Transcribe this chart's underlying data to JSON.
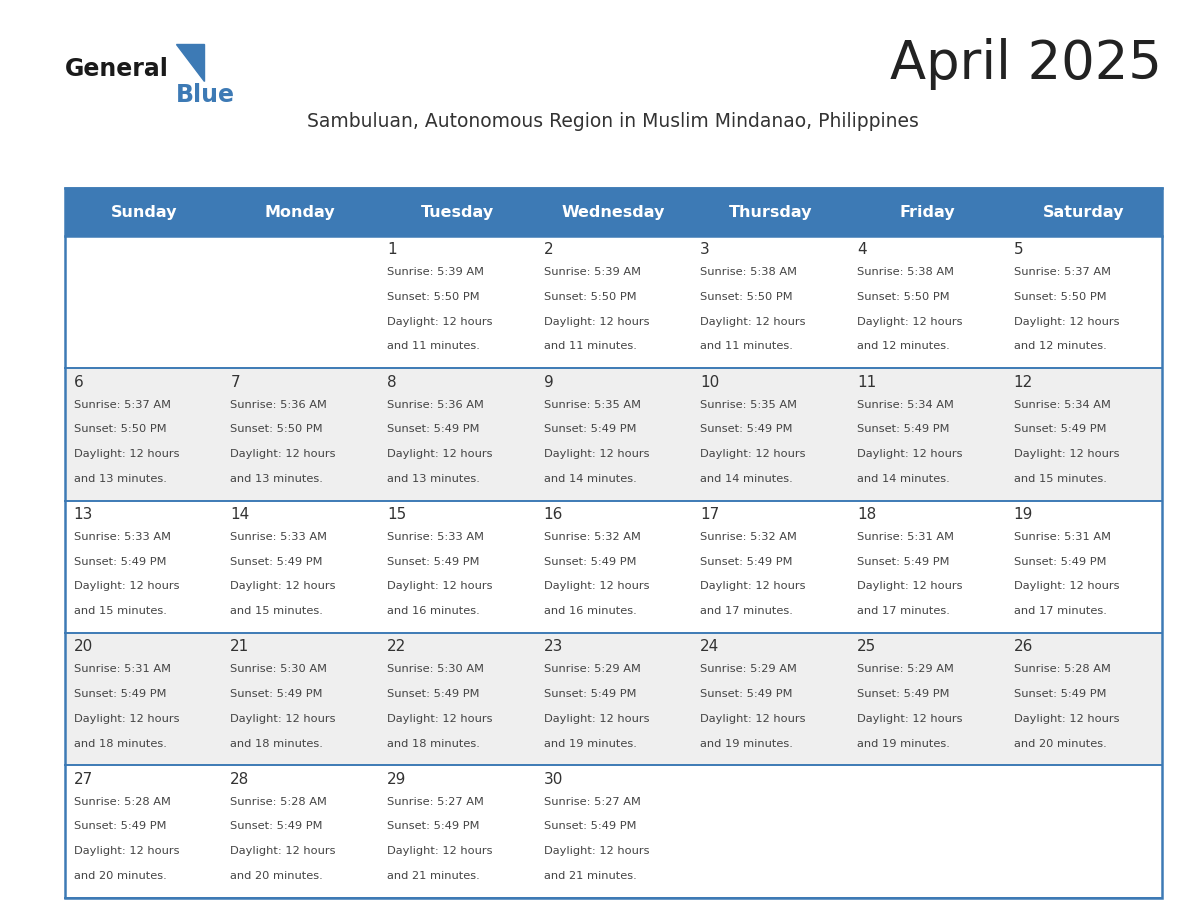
{
  "title": "April 2025",
  "subtitle": "Sambuluan, Autonomous Region in Muslim Mindanao, Philippines",
  "header_bg_color": "#3d7ab5",
  "header_text_color": "#ffffff",
  "cell_bg_even": "#efefef",
  "cell_bg_odd": "#ffffff",
  "day_number_color": "#333333",
  "cell_text_color": "#444444",
  "title_color": "#222222",
  "subtitle_color": "#333333",
  "border_color": "#3d7ab5",
  "days_of_week": [
    "Sunday",
    "Monday",
    "Tuesday",
    "Wednesday",
    "Thursday",
    "Friday",
    "Saturday"
  ],
  "calendar": [
    [
      {
        "day": null,
        "sunrise": null,
        "sunset": null,
        "daylight_line1": null,
        "daylight_line2": null
      },
      {
        "day": null,
        "sunrise": null,
        "sunset": null,
        "daylight_line1": null,
        "daylight_line2": null
      },
      {
        "day": 1,
        "sunrise": "5:39 AM",
        "sunset": "5:50 PM",
        "daylight_line1": "Daylight: 12 hours",
        "daylight_line2": "and 11 minutes."
      },
      {
        "day": 2,
        "sunrise": "5:39 AM",
        "sunset": "5:50 PM",
        "daylight_line1": "Daylight: 12 hours",
        "daylight_line2": "and 11 minutes."
      },
      {
        "day": 3,
        "sunrise": "5:38 AM",
        "sunset": "5:50 PM",
        "daylight_line1": "Daylight: 12 hours",
        "daylight_line2": "and 11 minutes."
      },
      {
        "day": 4,
        "sunrise": "5:38 AM",
        "sunset": "5:50 PM",
        "daylight_line1": "Daylight: 12 hours",
        "daylight_line2": "and 12 minutes."
      },
      {
        "day": 5,
        "sunrise": "5:37 AM",
        "sunset": "5:50 PM",
        "daylight_line1": "Daylight: 12 hours",
        "daylight_line2": "and 12 minutes."
      }
    ],
    [
      {
        "day": 6,
        "sunrise": "5:37 AM",
        "sunset": "5:50 PM",
        "daylight_line1": "Daylight: 12 hours",
        "daylight_line2": "and 13 minutes."
      },
      {
        "day": 7,
        "sunrise": "5:36 AM",
        "sunset": "5:50 PM",
        "daylight_line1": "Daylight: 12 hours",
        "daylight_line2": "and 13 minutes."
      },
      {
        "day": 8,
        "sunrise": "5:36 AM",
        "sunset": "5:49 PM",
        "daylight_line1": "Daylight: 12 hours",
        "daylight_line2": "and 13 minutes."
      },
      {
        "day": 9,
        "sunrise": "5:35 AM",
        "sunset": "5:49 PM",
        "daylight_line1": "Daylight: 12 hours",
        "daylight_line2": "and 14 minutes."
      },
      {
        "day": 10,
        "sunrise": "5:35 AM",
        "sunset": "5:49 PM",
        "daylight_line1": "Daylight: 12 hours",
        "daylight_line2": "and 14 minutes."
      },
      {
        "day": 11,
        "sunrise": "5:34 AM",
        "sunset": "5:49 PM",
        "daylight_line1": "Daylight: 12 hours",
        "daylight_line2": "and 14 minutes."
      },
      {
        "day": 12,
        "sunrise": "5:34 AM",
        "sunset": "5:49 PM",
        "daylight_line1": "Daylight: 12 hours",
        "daylight_line2": "and 15 minutes."
      }
    ],
    [
      {
        "day": 13,
        "sunrise": "5:33 AM",
        "sunset": "5:49 PM",
        "daylight_line1": "Daylight: 12 hours",
        "daylight_line2": "and 15 minutes."
      },
      {
        "day": 14,
        "sunrise": "5:33 AM",
        "sunset": "5:49 PM",
        "daylight_line1": "Daylight: 12 hours",
        "daylight_line2": "and 15 minutes."
      },
      {
        "day": 15,
        "sunrise": "5:33 AM",
        "sunset": "5:49 PM",
        "daylight_line1": "Daylight: 12 hours",
        "daylight_line2": "and 16 minutes."
      },
      {
        "day": 16,
        "sunrise": "5:32 AM",
        "sunset": "5:49 PM",
        "daylight_line1": "Daylight: 12 hours",
        "daylight_line2": "and 16 minutes."
      },
      {
        "day": 17,
        "sunrise": "5:32 AM",
        "sunset": "5:49 PM",
        "daylight_line1": "Daylight: 12 hours",
        "daylight_line2": "and 17 minutes."
      },
      {
        "day": 18,
        "sunrise": "5:31 AM",
        "sunset": "5:49 PM",
        "daylight_line1": "Daylight: 12 hours",
        "daylight_line2": "and 17 minutes."
      },
      {
        "day": 19,
        "sunrise": "5:31 AM",
        "sunset": "5:49 PM",
        "daylight_line1": "Daylight: 12 hours",
        "daylight_line2": "and 17 minutes."
      }
    ],
    [
      {
        "day": 20,
        "sunrise": "5:31 AM",
        "sunset": "5:49 PM",
        "daylight_line1": "Daylight: 12 hours",
        "daylight_line2": "and 18 minutes."
      },
      {
        "day": 21,
        "sunrise": "5:30 AM",
        "sunset": "5:49 PM",
        "daylight_line1": "Daylight: 12 hours",
        "daylight_line2": "and 18 minutes."
      },
      {
        "day": 22,
        "sunrise": "5:30 AM",
        "sunset": "5:49 PM",
        "daylight_line1": "Daylight: 12 hours",
        "daylight_line2": "and 18 minutes."
      },
      {
        "day": 23,
        "sunrise": "5:29 AM",
        "sunset": "5:49 PM",
        "daylight_line1": "Daylight: 12 hours",
        "daylight_line2": "and 19 minutes."
      },
      {
        "day": 24,
        "sunrise": "5:29 AM",
        "sunset": "5:49 PM",
        "daylight_line1": "Daylight: 12 hours",
        "daylight_line2": "and 19 minutes."
      },
      {
        "day": 25,
        "sunrise": "5:29 AM",
        "sunset": "5:49 PM",
        "daylight_line1": "Daylight: 12 hours",
        "daylight_line2": "and 19 minutes."
      },
      {
        "day": 26,
        "sunrise": "5:28 AM",
        "sunset": "5:49 PM",
        "daylight_line1": "Daylight: 12 hours",
        "daylight_line2": "and 20 minutes."
      }
    ],
    [
      {
        "day": 27,
        "sunrise": "5:28 AM",
        "sunset": "5:49 PM",
        "daylight_line1": "Daylight: 12 hours",
        "daylight_line2": "and 20 minutes."
      },
      {
        "day": 28,
        "sunrise": "5:28 AM",
        "sunset": "5:49 PM",
        "daylight_line1": "Daylight: 12 hours",
        "daylight_line2": "and 20 minutes."
      },
      {
        "day": 29,
        "sunrise": "5:27 AM",
        "sunset": "5:49 PM",
        "daylight_line1": "Daylight: 12 hours",
        "daylight_line2": "and 21 minutes."
      },
      {
        "day": 30,
        "sunrise": "5:27 AM",
        "sunset": "5:49 PM",
        "daylight_line1": "Daylight: 12 hours",
        "daylight_line2": "and 21 minutes."
      },
      {
        "day": null,
        "sunrise": null,
        "sunset": null,
        "daylight_line1": null,
        "daylight_line2": null
      },
      {
        "day": null,
        "sunrise": null,
        "sunset": null,
        "daylight_line1": null,
        "daylight_line2": null
      },
      {
        "day": null,
        "sunrise": null,
        "sunset": null,
        "daylight_line1": null,
        "daylight_line2": null
      }
    ]
  ]
}
